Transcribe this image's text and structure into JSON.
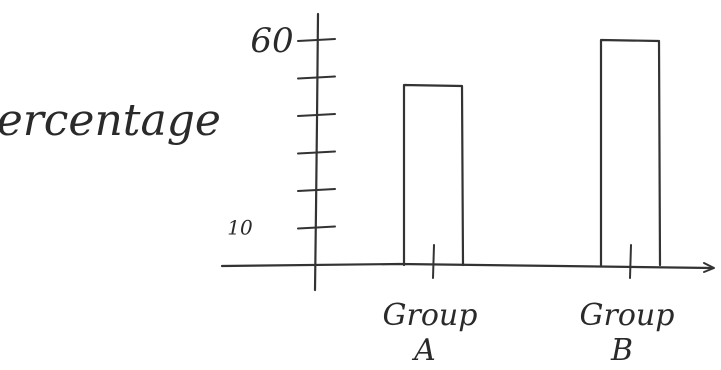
{
  "chart_data": {
    "type": "bar",
    "style": "hand-drawn sketch",
    "ylabel": "Percentage",
    "xlabel": "",
    "categories": [
      "Group A",
      "Group B"
    ],
    "category_labels": [
      [
        "Group",
        "A"
      ],
      [
        "Group",
        "B"
      ]
    ],
    "values": [
      48,
      60
    ],
    "ylim": [
      0,
      60
    ],
    "y_tick_values": [
      10,
      20,
      30,
      40,
      50,
      60
    ],
    "y_tick_labels": [
      "10",
      "",
      "",
      "",
      "",
      "60"
    ],
    "grid": false,
    "legend": "none",
    "colors": {
      "ink": "#333333",
      "bar_fill": "#ffffff",
      "background": "#ffffff"
    }
  }
}
